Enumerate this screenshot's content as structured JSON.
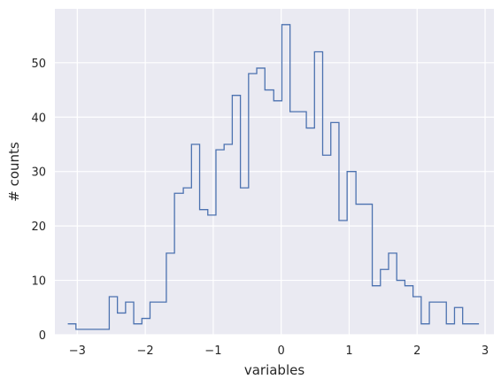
{
  "colors": {
    "background": "#ffffff",
    "plot_background": "#eaeaf2",
    "grid": "#ffffff",
    "line": "#4c72b0",
    "text": "#262626"
  },
  "chart_data": {
    "type": "line",
    "subtype": "step-histogram",
    "title": "",
    "xlabel": "variables",
    "ylabel": "# counts",
    "xlim": [
      -3.33,
      3.13
    ],
    "ylim": [
      0,
      59.9
    ],
    "xticks": [
      -3,
      -2,
      -1,
      0,
      1,
      2,
      3
    ],
    "xtick_labels": [
      "−3",
      "−2",
      "−1",
      "0",
      "1",
      "2",
      "3"
    ],
    "yticks": [
      0,
      10,
      20,
      30,
      40,
      50
    ],
    "ytick_labels": [
      "0",
      "10",
      "20",
      "30",
      "40",
      "50"
    ],
    "grid": true,
    "legend": false,
    "series": [
      {
        "edges": [
          -3.14,
          -3.02,
          -2.9,
          -2.78,
          -2.65,
          -2.53,
          -2.41,
          -2.29,
          -2.17,
          -2.05,
          -1.93,
          -1.81,
          -1.69,
          -1.57,
          -1.44,
          -1.32,
          -1.2,
          -1.08,
          -0.96,
          -0.84,
          -0.72,
          -0.6,
          -0.48,
          -0.36,
          -0.24,
          -0.11,
          0.01,
          0.13,
          0.25,
          0.37,
          0.49,
          0.61,
          0.73,
          0.85,
          0.97,
          1.1,
          1.22,
          1.34,
          1.46,
          1.58,
          1.7,
          1.82,
          1.94,
          2.06,
          2.18,
          2.31,
          2.43,
          2.55,
          2.67,
          2.79,
          2.91
        ],
        "counts": [
          2,
          1,
          1,
          1,
          1,
          7,
          4,
          6,
          2,
          3,
          6,
          6,
          15,
          26,
          27,
          35,
          23,
          22,
          34,
          35,
          44,
          27,
          48,
          49,
          45,
          43,
          57,
          41,
          41,
          38,
          52,
          33,
          39,
          21,
          30,
          24,
          24,
          9,
          12,
          15,
          10,
          9,
          7,
          2,
          6,
          6,
          2,
          5,
          2,
          2
        ]
      }
    ]
  }
}
